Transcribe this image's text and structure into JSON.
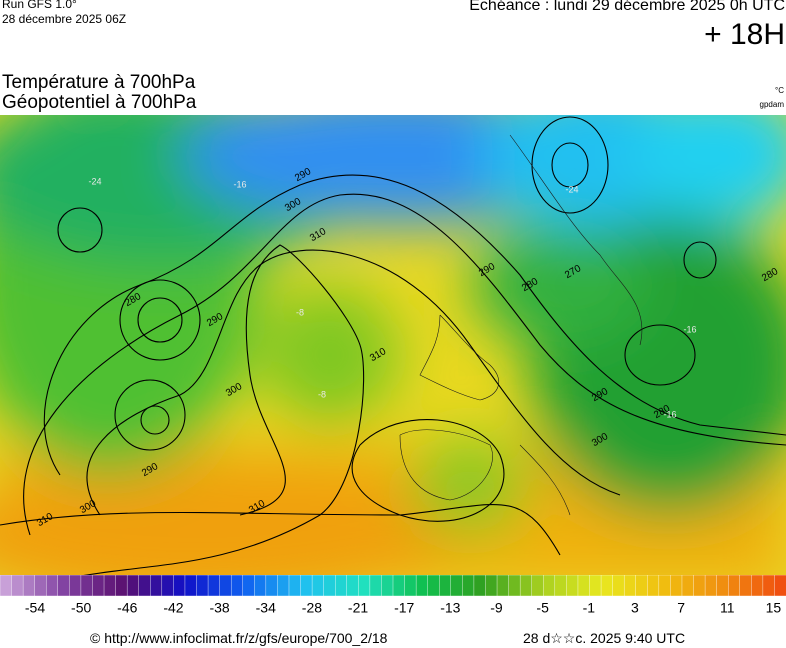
{
  "header": {
    "run": "Run GFS 1.0°",
    "run_date": "28 décembre 2025 06Z",
    "valid": "Echéance : lundi 29 décembre 2025 0h UTC",
    "lead": "+ 18H",
    "title_line1": "Température à 700hPa",
    "title_line2": "Géopotentiel à 700hPa",
    "unit_temp": "°C",
    "unit_geo": "gpdam"
  },
  "map": {
    "contour_labels": [
      "290",
      "300",
      "310",
      "280",
      "290",
      "300",
      "290",
      "300",
      "310",
      "310",
      "310",
      "290",
      "280",
      "270",
      "280",
      "290",
      "300",
      "280"
    ],
    "isotherm_labels": [
      "-24",
      "-24",
      "-16",
      "-16",
      "-16",
      "-8",
      "-8"
    ]
  },
  "colorbar": {
    "labels": [
      -54,
      -50,
      -46,
      -42,
      -38,
      -34,
      -28,
      -21,
      -17,
      -13,
      -9,
      -5,
      -1,
      3,
      7,
      11,
      15
    ],
    "colors": [
      "#c8a0d8",
      "#8040a0",
      "#5a1070",
      "#1010c8",
      "#1060f0",
      "#20c0f0",
      "#20e0c0",
      "#10c050",
      "#30a020",
      "#a8d020",
      "#e8e820",
      "#f0c010",
      "#f09010",
      "#f05010"
    ]
  },
  "footer": {
    "url": "© http://www.infoclimat.fr/z/gfs/europe/700_2/18",
    "stamp": "28 d☆☆c. 2025  9:40 UTC"
  }
}
